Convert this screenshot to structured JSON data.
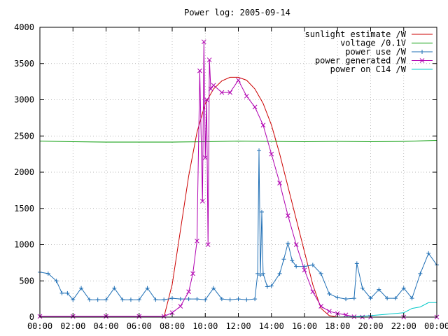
{
  "chart_data": {
    "type": "line",
    "title": "Power log: 2005-09-14",
    "xlabel": "",
    "ylabel": "",
    "xlim": [
      "00:00",
      "24:00"
    ],
    "ylim": [
      0,
      4000
    ],
    "grid": true,
    "legend_position": "top-right",
    "x_ticks": [
      "00:00",
      "02:00",
      "04:00",
      "06:00",
      "08:00",
      "10:00",
      "12:00",
      "14:00",
      "16:00",
      "18:00",
      "20:00",
      "22:00",
      "00:00"
    ],
    "y_ticks": [
      "0",
      "500",
      "1000",
      "1500",
      "2000",
      "2500",
      "3000",
      "3500",
      "4000"
    ],
    "series": [
      {
        "name": "sunlight estimate /W",
        "color": "#cc0000",
        "marker": "none",
        "x": [
          "07:30",
          "08:00",
          "08:30",
          "09:00",
          "09:30",
          "10:00",
          "10:30",
          "11:00",
          "11:30",
          "12:00",
          "12:30",
          "13:00",
          "13:30",
          "14:00",
          "14:30",
          "15:00",
          "15:30",
          "16:00",
          "16:30",
          "17:00",
          "17:30",
          "18:00"
        ],
        "y": [
          0,
          450,
          1200,
          1950,
          2550,
          2950,
          3150,
          3260,
          3310,
          3310,
          3270,
          3150,
          2950,
          2650,
          2250,
          1800,
          1350,
          900,
          450,
          120,
          20,
          0
        ]
      },
      {
        "name": "voltage /0.1V",
        "color": "#009900",
        "marker": "none",
        "x": [
          "00:00",
          "02:00",
          "04:00",
          "06:00",
          "08:00",
          "10:00",
          "12:00",
          "14:00",
          "16:00",
          "18:00",
          "20:00",
          "22:00",
          "24:00"
        ],
        "y": [
          2430,
          2420,
          2415,
          2415,
          2415,
          2420,
          2430,
          2425,
          2420,
          2425,
          2420,
          2425,
          2440
        ]
      },
      {
        "name": "power use /W",
        "color": "#1f6fb5",
        "marker": "plus",
        "x": [
          "00:00",
          "00:30",
          "01:00",
          "01:20",
          "01:40",
          "02:00",
          "02:30",
          "03:00",
          "03:30",
          "04:00",
          "04:30",
          "05:00",
          "05:30",
          "06:00",
          "06:30",
          "07:00",
          "07:30",
          "08:00",
          "08:30",
          "09:00",
          "09:30",
          "10:00",
          "10:30",
          "11:00",
          "11:30",
          "12:00",
          "12:30",
          "13:00",
          "13:10",
          "13:15",
          "13:20",
          "13:25",
          "13:30",
          "13:45",
          "14:00",
          "14:30",
          "14:45",
          "15:00",
          "15:15",
          "15:30",
          "16:00",
          "16:30",
          "17:00",
          "17:30",
          "18:00",
          "18:30",
          "19:00",
          "19:10",
          "19:30",
          "20:00",
          "20:30",
          "21:00",
          "21:30",
          "22:00",
          "22:30",
          "23:00",
          "23:30",
          "24:00"
        ],
        "y": [
          620,
          600,
          500,
          330,
          330,
          240,
          400,
          240,
          240,
          240,
          400,
          240,
          240,
          240,
          400,
          240,
          240,
          260,
          250,
          250,
          250,
          240,
          400,
          250,
          240,
          250,
          240,
          250,
          600,
          2300,
          580,
          1450,
          600,
          420,
          430,
          600,
          800,
          1020,
          780,
          700,
          700,
          720,
          600,
          320,
          270,
          250,
          260,
          740,
          400,
          260,
          380,
          260,
          260,
          400,
          260,
          600,
          880,
          720
        ]
      },
      {
        "name": "power generated /W",
        "color": "#b000b0",
        "marker": "cross",
        "x": [
          "00:00",
          "02:00",
          "04:00",
          "06:00",
          "07:30",
          "08:00",
          "08:30",
          "09:00",
          "09:15",
          "09:30",
          "09:40",
          "09:50",
          "09:55",
          "10:00",
          "10:05",
          "10:10",
          "10:15",
          "10:20",
          "10:30",
          "11:00",
          "11:30",
          "12:00",
          "12:30",
          "13:00",
          "13:30",
          "14:00",
          "14:30",
          "15:00",
          "15:30",
          "16:00",
          "16:30",
          "17:00",
          "17:30",
          "18:00",
          "18:30",
          "19:00",
          "19:30",
          "20:00",
          "22:00",
          "24:00"
        ],
        "y": [
          10,
          10,
          10,
          10,
          10,
          60,
          150,
          350,
          600,
          1050,
          3400,
          1600,
          3800,
          2200,
          3000,
          1000,
          3550,
          3150,
          3200,
          3100,
          3100,
          3270,
          3050,
          2900,
          2650,
          2250,
          1850,
          1400,
          1000,
          650,
          350,
          150,
          80,
          50,
          30,
          5,
          0,
          0,
          0,
          0
        ]
      },
      {
        "name": "power on C14 /W",
        "color": "#00c8c8",
        "marker": "none",
        "x": [
          "00:00",
          "16:00",
          "17:00",
          "18:00",
          "19:00",
          "20:00",
          "21:00",
          "22:00",
          "22:30",
          "23:00",
          "23:30",
          "24:00"
        ],
        "y": [
          0,
          0,
          0,
          0,
          5,
          20,
          40,
          60,
          120,
          140,
          200,
          200
        ]
      }
    ]
  }
}
